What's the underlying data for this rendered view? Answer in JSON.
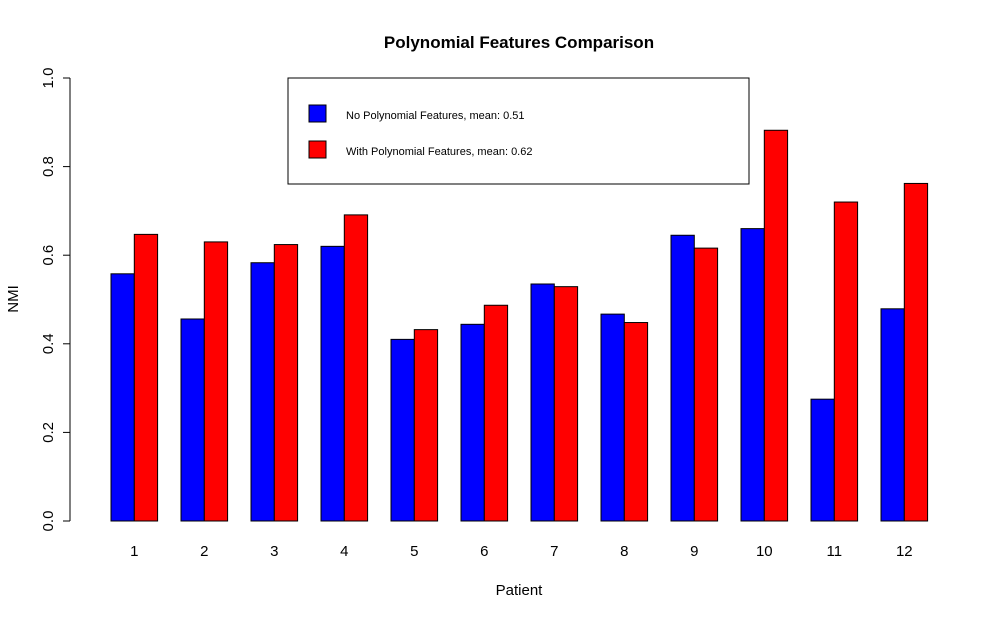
{
  "chart_data": {
    "type": "bar",
    "title": "Polynomial Features Comparison",
    "xlabel": "Patient",
    "ylabel": "NMI",
    "ylim": [
      0,
      1
    ],
    "yticks": [
      "0.0",
      "0.2",
      "0.4",
      "0.6",
      "0.8",
      "1.0"
    ],
    "categories": [
      "1",
      "2",
      "3",
      "4",
      "5",
      "6",
      "7",
      "8",
      "9",
      "10",
      "11",
      "12"
    ],
    "series": [
      {
        "name": "No Polynomial Features, mean: 0.51",
        "color": "#0000FF",
        "values": [
          0.558,
          0.456,
          0.583,
          0.62,
          0.41,
          0.444,
          0.535,
          0.467,
          0.645,
          0.66,
          0.275,
          0.479
        ]
      },
      {
        "name": "With Polynomial Features, mean: 0.62",
        "color": "#FF0000",
        "values": [
          0.647,
          0.63,
          0.624,
          0.691,
          0.432,
          0.487,
          0.529,
          0.448,
          0.616,
          0.882,
          0.72,
          0.762
        ]
      }
    ],
    "grid": false,
    "legend_position": "top-center"
  }
}
